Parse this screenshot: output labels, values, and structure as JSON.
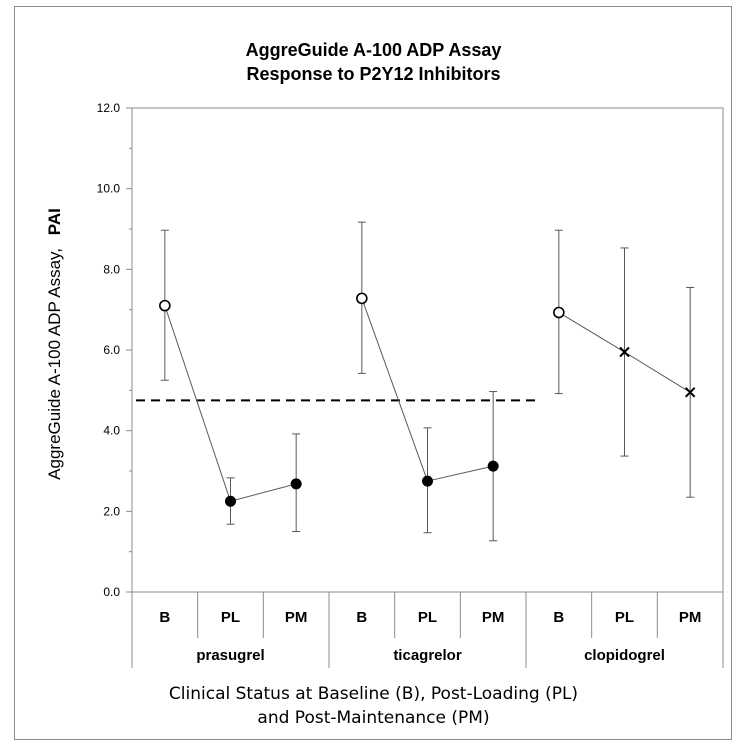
{
  "chart_data": {
    "type": "scatter",
    "title": [
      "AggreGuide A-100 ADP Assay",
      "Response to P2Y12 Inhibitors"
    ],
    "ylabel": "AggreGuide A-100 ADP Assay,",
    "ylabel_bold": "PAI",
    "xlabel": [
      "Clinical  Status at Baseline (B), Post-Loading (PL)",
      "and Post-Maintenance (PM)"
    ],
    "ylim": [
      0,
      12
    ],
    "yticks": [
      "0.0",
      "2.0",
      "4.0",
      "6.0",
      "8.0",
      "10.0",
      "12.0"
    ],
    "threshold": 4.75,
    "threshold_extent": [
      "prasugrel B",
      "ticagrelor PM"
    ],
    "groups": [
      {
        "name": "prasugrel",
        "points": [
          {
            "label": "B",
            "value": 7.1,
            "err_low": 5.25,
            "err_high": 8.97,
            "marker": "open-circle"
          },
          {
            "label": "PL",
            "value": 2.25,
            "err_low": 1.68,
            "err_high": 2.83,
            "marker": "filled-circle"
          },
          {
            "label": "PM",
            "value": 2.68,
            "err_low": 1.5,
            "err_high": 3.92,
            "marker": "filled-circle"
          }
        ]
      },
      {
        "name": "ticagrelor",
        "points": [
          {
            "label": "B",
            "value": 7.28,
            "err_low": 5.42,
            "err_high": 9.17,
            "marker": "open-circle"
          },
          {
            "label": "PL",
            "value": 2.75,
            "err_low": 1.47,
            "err_high": 4.07,
            "marker": "filled-circle"
          },
          {
            "label": "PM",
            "value": 3.12,
            "err_low": 1.27,
            "err_high": 4.97,
            "marker": "filled-circle"
          }
        ]
      },
      {
        "name": "clopidogrel",
        "points": [
          {
            "label": "B",
            "value": 6.93,
            "err_low": 4.92,
            "err_high": 8.97,
            "marker": "open-circle"
          },
          {
            "label": "PL",
            "value": 5.95,
            "err_low": 3.37,
            "err_high": 8.53,
            "marker": "x"
          },
          {
            "label": "PM",
            "value": 4.95,
            "err_low": 2.35,
            "err_high": 7.55,
            "marker": "x"
          }
        ]
      }
    ],
    "grid": false,
    "legend": "none"
  }
}
